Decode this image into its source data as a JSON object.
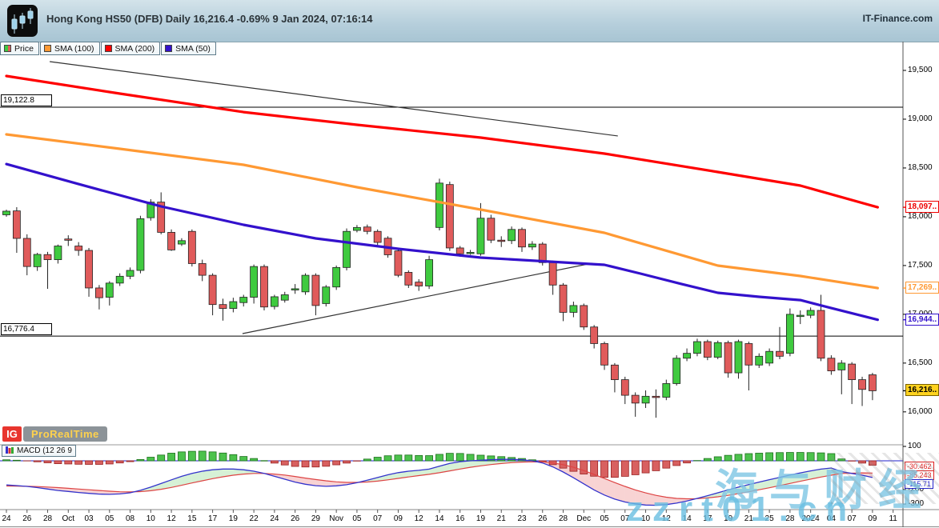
{
  "header": {
    "title": "Hong Kong HS50 (DFB) Daily 16,216.4 -0.69% 9 Jan 2024, 07:16:14",
    "source": "IT-Finance.com"
  },
  "legend": {
    "items": [
      {
        "label": "Price",
        "type": "price",
        "up_color": "#3fca3f",
        "down_color": "#e05b5b"
      },
      {
        "label": "SMA (100)",
        "color": "#ff9933"
      },
      {
        "label": "SMA (200)",
        "color": "#ff0000"
      },
      {
        "label": "SMA (50)",
        "color": "#3311cc"
      }
    ]
  },
  "footer": {
    "ig_label": "IG",
    "platform_label": "ProRealTime"
  },
  "watermark": {
    "line1": "海与财经",
    "line2": "zzrt01.cn"
  },
  "macd_panel": {
    "label": "MACD (12 26 9",
    "ticks": [
      {
        "text": "100",
        "value": 100
      },
      {
        "text": "-200",
        "value": -200
      },
      {
        "text": "-300",
        "value": -300
      }
    ],
    "value_labels": [
      {
        "text": "-30.462",
        "color": "#dd2222"
      },
      {
        "text": "-85.243",
        "color": "#dd2222"
      },
      {
        "text": "-115.71",
        "color": "#2222cc"
      }
    ]
  },
  "price_axis": {
    "ticks": [
      {
        "text": "19,500",
        "value": 19500
      },
      {
        "text": "19,000",
        "value": 19000
      },
      {
        "text": "18,500",
        "value": 18500
      },
      {
        "text": "18,000",
        "value": 18000
      },
      {
        "text": "17,500",
        "value": 17500
      },
      {
        "text": "17,000",
        "value": 17000
      },
      {
        "text": "16,500",
        "value": 16500
      },
      {
        "text": "16,000",
        "value": 16000
      }
    ],
    "special_labels": [
      {
        "text": "18,097..",
        "value": 18097,
        "color": "#ee0000",
        "bg": "#ffffff"
      },
      {
        "text": "17,269..",
        "value": 17269,
        "color": "#ff9933",
        "bg": "#ffffff"
      },
      {
        "text": "16,944..",
        "value": 16944,
        "color": "#3311cc",
        "bg": "#ffffff"
      },
      {
        "text": "16,216..",
        "value": 16216.4,
        "color": "#000000",
        "bg": "#ffd21e"
      }
    ]
  },
  "chart_data": {
    "type": "candlestick",
    "title": "Hong Kong HS50 (DFB) Daily",
    "last_price": 16216.4,
    "change_pct": -0.69,
    "level_lines": [
      {
        "label": "19,122.8",
        "price": 19122.8
      },
      {
        "label": "16,776.4",
        "price": 16776.4
      }
    ],
    "trendlines": [
      {
        "x1": 4.2,
        "p1": 19590,
        "x2": 59.3,
        "p2": 18828
      },
      {
        "x1": 22.9,
        "p1": 16802,
        "x2": 56.8,
        "p2": 17524
      }
    ],
    "xaxis_labels": [
      {
        "t": "24",
        "i": 0
      },
      {
        "t": "26",
        "i": 2
      },
      {
        "t": "28",
        "i": 4
      },
      {
        "t": "Oct",
        "i": 6
      },
      {
        "t": "03",
        "i": 8
      },
      {
        "t": "05",
        "i": 10
      },
      {
        "t": "08",
        "i": 12
      },
      {
        "t": "10",
        "i": 14
      },
      {
        "t": "12",
        "i": 16
      },
      {
        "t": "15",
        "i": 18
      },
      {
        "t": "17",
        "i": 20
      },
      {
        "t": "19",
        "i": 22
      },
      {
        "t": "22",
        "i": 24
      },
      {
        "t": "24",
        "i": 26
      },
      {
        "t": "26",
        "i": 28
      },
      {
        "t": "29",
        "i": 30
      },
      {
        "t": "Nov",
        "i": 32
      },
      {
        "t": "05",
        "i": 34
      },
      {
        "t": "07",
        "i": 36
      },
      {
        "t": "09",
        "i": 38
      },
      {
        "t": "12",
        "i": 40
      },
      {
        "t": "14",
        "i": 42
      },
      {
        "t": "16",
        "i": 44
      },
      {
        "t": "19",
        "i": 46
      },
      {
        "t": "21",
        "i": 48
      },
      {
        "t": "23",
        "i": 50
      },
      {
        "t": "26",
        "i": 52
      },
      {
        "t": "28",
        "i": 54
      },
      {
        "t": "Dec",
        "i": 56
      },
      {
        "t": "05",
        "i": 58
      },
      {
        "t": "07",
        "i": 60
      },
      {
        "t": "10",
        "i": 62
      },
      {
        "t": "12",
        "i": 64
      },
      {
        "t": "14",
        "i": 66
      },
      {
        "t": "17",
        "i": 68
      },
      {
        "t": "19",
        "i": 70
      },
      {
        "t": "21",
        "i": 72
      },
      {
        "t": "25",
        "i": 74
      },
      {
        "t": "28",
        "i": 76
      },
      {
        "t": "2024",
        "i": 78
      },
      {
        "t": "04",
        "i": 80
      },
      {
        "t": "07",
        "i": 82
      },
      {
        "t": "09",
        "i": 84
      },
      {
        "t": "11",
        "i": 86
      }
    ],
    "candles": [
      [
        18020,
        18072,
        18000,
        18057
      ],
      [
        18060,
        18098,
        17630,
        17778
      ],
      [
        17778,
        17820,
        17400,
        17490
      ],
      [
        17488,
        17630,
        17445,
        17614
      ],
      [
        17612,
        17640,
        17261,
        17560
      ],
      [
        17560,
        17715,
        17520,
        17700
      ],
      [
        17772,
        17810,
        17700,
        17766
      ],
      [
        17700,
        17740,
        17600,
        17655
      ],
      [
        17655,
        17680,
        17180,
        17270
      ],
      [
        17270,
        17300,
        17050,
        17170
      ],
      [
        17175,
        17340,
        17090,
        17320
      ],
      [
        17320,
        17420,
        17290,
        17390
      ],
      [
        17390,
        17480,
        17360,
        17450
      ],
      [
        17450,
        18010,
        17420,
        17980
      ],
      [
        17990,
        18180,
        17960,
        18150
      ],
      [
        18150,
        18250,
        17820,
        17840
      ],
      [
        17840,
        17870,
        17650,
        17660
      ],
      [
        17720,
        17780,
        17700,
        17755
      ],
      [
        17850,
        17870,
        17490,
        17520
      ],
      [
        17520,
        17560,
        17340,
        17400
      ],
      [
        17400,
        17420,
        16990,
        17100
      ],
      [
        17100,
        17160,
        16935,
        17060
      ],
      [
        17060,
        17170,
        17020,
        17130
      ],
      [
        17120,
        17200,
        17080,
        17175
      ],
      [
        17175,
        17510,
        17110,
        17490
      ],
      [
        17490,
        17510,
        17040,
        17075
      ],
      [
        17080,
        17200,
        17050,
        17180
      ],
      [
        17145,
        17230,
        17120,
        17200
      ],
      [
        17260,
        17310,
        17210,
        17262
      ],
      [
        17230,
        17420,
        17200,
        17400
      ],
      [
        17400,
        17420,
        16990,
        17090
      ],
      [
        17110,
        17300,
        17080,
        17280
      ],
      [
        17280,
        17500,
        17250,
        17480
      ],
      [
        17480,
        17880,
        17450,
        17850
      ],
      [
        17860,
        17915,
        17840,
        17890
      ],
      [
        17895,
        17920,
        17820,
        17850
      ],
      [
        17850,
        17870,
        17710,
        17737
      ],
      [
        17780,
        17800,
        17580,
        17610
      ],
      [
        17650,
        17670,
        17380,
        17400
      ],
      [
        17430,
        17450,
        17270,
        17300
      ],
      [
        17330,
        17360,
        17240,
        17290
      ],
      [
        17290,
        17600,
        17260,
        17560
      ],
      [
        17890,
        18390,
        17860,
        18345
      ],
      [
        18330,
        18360,
        17650,
        17680
      ],
      [
        17680,
        17700,
        17590,
        17620
      ],
      [
        17630,
        17660,
        17610,
        17635
      ],
      [
        17620,
        18140,
        17600,
        17985
      ],
      [
        17985,
        18020,
        17730,
        17760
      ],
      [
        17760,
        17800,
        17690,
        17755
      ],
      [
        17755,
        17900,
        17720,
        17870
      ],
      [
        17870,
        17890,
        17640,
        17690
      ],
      [
        17690,
        17750,
        17660,
        17720
      ],
      [
        17720,
        17740,
        17500,
        17530
      ],
      [
        17530,
        17550,
        17200,
        17300
      ],
      [
        17300,
        17320,
        16930,
        17020
      ],
      [
        17020,
        17130,
        16970,
        17090
      ],
      [
        17090,
        17110,
        16840,
        16870
      ],
      [
        16870,
        16890,
        16650,
        16700
      ],
      [
        16700,
        16720,
        16430,
        16480
      ],
      [
        16480,
        16500,
        16200,
        16330
      ],
      [
        16330,
        16360,
        16080,
        16170
      ],
      [
        16170,
        16200,
        15950,
        16090
      ],
      [
        16090,
        16220,
        16040,
        16160
      ],
      [
        16160,
        16230,
        15940,
        16150
      ],
      [
        16150,
        16330,
        16120,
        16290
      ],
      [
        16290,
        16580,
        16270,
        16550
      ],
      [
        16550,
        16650,
        16520,
        16600
      ],
      [
        16600,
        16750,
        16570,
        16720
      ],
      [
        16720,
        16740,
        16530,
        16560
      ],
      [
        16560,
        16730,
        16540,
        16710
      ],
      [
        16710,
        16730,
        16350,
        16400
      ],
      [
        16400,
        16740,
        16340,
        16720
      ],
      [
        16700,
        16720,
        16220,
        16480
      ],
      [
        16480,
        16600,
        16450,
        16570
      ],
      [
        16500,
        16650,
        16470,
        16620
      ],
      [
        16620,
        16870,
        16540,
        16570
      ],
      [
        16600,
        17060,
        16570,
        17000
      ],
      [
        16980,
        17040,
        16900,
        16990
      ],
      [
        16990,
        17070,
        16960,
        17040
      ],
      [
        17040,
        17200,
        16520,
        16550
      ],
      [
        16550,
        16580,
        16380,
        16420
      ],
      [
        16430,
        16530,
        16180,
        16500
      ],
      [
        16490,
        16510,
        16080,
        16330
      ],
      [
        16330,
        16360,
        16060,
        16230
      ],
      [
        16380,
        16400,
        16120,
        16216.4
      ]
    ],
    "sma_200": [
      [
        0,
        19443
      ],
      [
        11,
        19262
      ],
      [
        23,
        19073
      ],
      [
        34,
        18942
      ],
      [
        46,
        18811
      ],
      [
        58,
        18647
      ],
      [
        69,
        18459
      ],
      [
        77,
        18319
      ],
      [
        84.5,
        18097
      ]
    ],
    "sma_100": [
      [
        0,
        18844
      ],
      [
        11,
        18696
      ],
      [
        23,
        18532
      ],
      [
        34,
        18303
      ],
      [
        46,
        18073
      ],
      [
        58,
        17835
      ],
      [
        69,
        17499
      ],
      [
        77,
        17393
      ],
      [
        84.5,
        17269
      ]
    ],
    "sma_50": [
      [
        0,
        18540
      ],
      [
        7,
        18335
      ],
      [
        15,
        18106
      ],
      [
        23,
        17917
      ],
      [
        30,
        17778
      ],
      [
        38,
        17671
      ],
      [
        46,
        17581
      ],
      [
        54,
        17532
      ],
      [
        58,
        17507
      ],
      [
        61.5,
        17417
      ],
      [
        65.5,
        17310
      ],
      [
        69,
        17220
      ],
      [
        73,
        17179
      ],
      [
        77,
        17146
      ],
      [
        80,
        17064
      ],
      [
        84.5,
        16944
      ]
    ],
    "macd": [
      -168,
      -172,
      -178,
      -186,
      -196,
      -206,
      -213,
      -220,
      -226,
      -231,
      -233,
      -230,
      -222,
      -205,
      -183,
      -158,
      -132,
      -108,
      -88,
      -72,
      -62,
      -57,
      -57,
      -62,
      -72,
      -88,
      -108,
      -128,
      -148,
      -163,
      -173,
      -177,
      -174,
      -166,
      -152,
      -135,
      -116,
      -97,
      -82,
      -72,
      -66,
      -58,
      -38,
      -18,
      -6,
      0,
      4,
      8,
      10,
      10,
      7,
      0,
      -15,
      -42,
      -78,
      -118,
      -160,
      -202,
      -238,
      -266,
      -286,
      -299,
      -307,
      -309,
      -304,
      -294,
      -279,
      -261,
      -242,
      -222,
      -202,
      -183,
      -165,
      -148,
      -131,
      -115,
      -99,
      -84,
      -70,
      -58,
      -50,
      -75,
      -88,
      -100,
      -116
    ],
    "signal": [
      -175,
      -176,
      -177,
      -179,
      -182,
      -186,
      -191,
      -196,
      -201,
      -206,
      -211,
      -215,
      -216,
      -214,
      -208,
      -198,
      -185,
      -170,
      -154,
      -139,
      -124,
      -111,
      -100,
      -92,
      -88,
      -88,
      -92,
      -99,
      -109,
      -120,
      -130,
      -139,
      -146,
      -150,
      -150,
      -147,
      -141,
      -132,
      -122,
      -112,
      -103,
      -94,
      -83,
      -70,
      -57,
      -45,
      -35,
      -26,
      -19,
      -13,
      -9,
      -7,
      -8,
      -15,
      -27,
      -45,
      -68,
      -95,
      -123,
      -151,
      -178,
      -202,
      -223,
      -240,
      -253,
      -261,
      -264,
      -263,
      -258,
      -250,
      -240,
      -228,
      -215,
      -201,
      -187,
      -172,
      -157,
      -142,
      -127,
      -113,
      -100,
      -88,
      -86,
      -84,
      -85
    ],
    "colors": {
      "up": "#3fca3f",
      "down": "#e05b5b",
      "sma50": "#3311cc",
      "sma100": "#ff9933",
      "sma200": "#ff0000",
      "macd_line": "#3333cc",
      "signal_line": "#dd4444",
      "hist_up": "#4cc24c",
      "hist_down": "#d86060",
      "fill_up": "rgba(120,210,120,0.30)",
      "fill_down": "rgba(235,130,130,0.35)"
    }
  }
}
